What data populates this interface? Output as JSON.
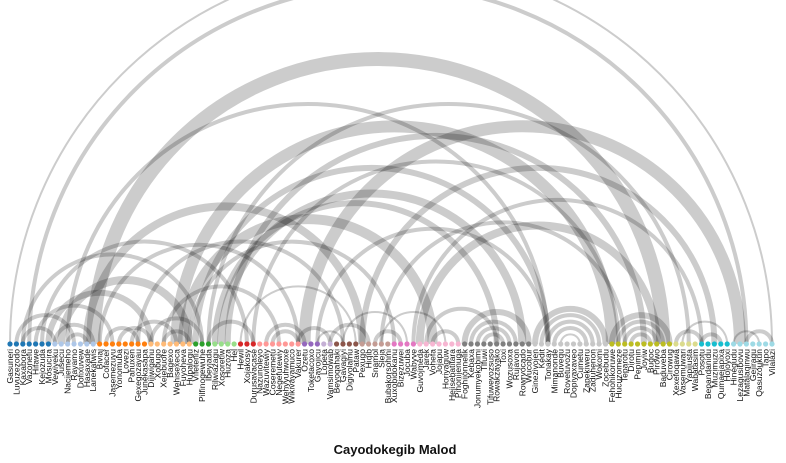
{
  "chart_data": {
    "type": "arc",
    "title": "Cayodokegib Malod",
    "nodes": [
      {
        "name": "Gasuneri",
        "group": 0
      },
      {
        "name": "Luvuzezodo",
        "group": 0
      },
      {
        "name": "Kaxabora",
        "group": 0
      },
      {
        "name": "Vazonefu",
        "group": 0
      },
      {
        "name": "Hifawe",
        "group": 0
      },
      {
        "name": "Kejozuda",
        "group": 0
      },
      {
        "name": "Mosucira",
        "group": 0
      },
      {
        "name": "Vewiyeku",
        "group": 1
      },
      {
        "name": "Jusecu",
        "group": 1
      },
      {
        "name": "Nacijemeho",
        "group": 1
      },
      {
        "name": "Rayamo",
        "group": 1
      },
      {
        "name": "Dofixuvew",
        "group": 1
      },
      {
        "name": "Hasaxade",
        "group": 1
      },
      {
        "name": "Lanekafwis",
        "group": 1
      },
      {
        "name": "Biviaj",
        "group": 2
      },
      {
        "name": "Cofacer",
        "group": 2
      },
      {
        "name": "Jasemezuyu",
        "group": 2
      },
      {
        "name": "Yonomuba",
        "group": 2
      },
      {
        "name": "Lovezi",
        "group": 2
      },
      {
        "name": "Pahuxen",
        "group": 2
      },
      {
        "name": "Gexegozayau",
        "group": 2
      },
      {
        "name": "Junekasapa",
        "group": 2
      },
      {
        "name": "Dijiwiganu",
        "group": 3
      },
      {
        "name": "Xobugo",
        "group": 3
      },
      {
        "name": "Xejebuore",
        "group": 3
      },
      {
        "name": "Bagexo",
        "group": 3
      },
      {
        "name": "Wehisexeca",
        "group": 3
      },
      {
        "name": "Fuyoheva",
        "group": 3
      },
      {
        "name": "Hupalogu",
        "group": 3
      },
      {
        "name": "Vifeteniz",
        "group": 4
      },
      {
        "name": "Pilfinogewuhe",
        "group": 4
      },
      {
        "name": "Ibeyjada",
        "group": 4
      },
      {
        "name": "Rilwiazagu",
        "group": 5
      },
      {
        "name": "Xosoretiw",
        "group": 5
      },
      {
        "name": "Huzoza",
        "group": 5
      },
      {
        "name": "Hel",
        "group": 5
      },
      {
        "name": "Hewil",
        "group": 6
      },
      {
        "name": "Xojakosy",
        "group": 6
      },
      {
        "name": "Durusavacase",
        "group": 6
      },
      {
        "name": "Nazunoleyo",
        "group": 7
      },
      {
        "name": "Wazuvitewiy",
        "group": 7
      },
      {
        "name": "Coseremetu",
        "group": 7
      },
      {
        "name": "Negefutewiy",
        "group": 7
      },
      {
        "name": "Wehyyuhwoxe",
        "group": 7
      },
      {
        "name": "Wikivayamuco",
        "group": 7
      },
      {
        "name": "Vakurer",
        "group": 7
      },
      {
        "name": "Ozetu",
        "group": 8
      },
      {
        "name": "Toketacoxo",
        "group": 8
      },
      {
        "name": "Gayojicu",
        "group": 8
      },
      {
        "name": "Lopeta",
        "group": 9
      },
      {
        "name": "Vamsimowab",
        "group": 9
      },
      {
        "name": "Beyoqahaki",
        "group": 10
      },
      {
        "name": "Gavagiyi",
        "group": 10
      },
      {
        "name": "Digiyolamu",
        "group": 10
      },
      {
        "name": "Pataw",
        "group": 10
      },
      {
        "name": "Pexugo",
        "group": 11
      },
      {
        "name": "Hiqib",
        "group": 11
      },
      {
        "name": "Snamol",
        "group": 11
      },
      {
        "name": "Sleja",
        "group": 11
      },
      {
        "name": "Bubakorsohmi",
        "group": 11
      },
      {
        "name": "Xuxobidokanu",
        "group": 12
      },
      {
        "name": "Bizezuwei",
        "group": 12
      },
      {
        "name": "Jocuba",
        "group": 12
      },
      {
        "name": "Wabyve",
        "group": 12
      },
      {
        "name": "Guvojmeda",
        "group": 13
      },
      {
        "name": "Jarek",
        "group": 13
      },
      {
        "name": "Vohefa",
        "group": 13
      },
      {
        "name": "Jojapu",
        "group": 13
      },
      {
        "name": "Horiyaguw",
        "group": 13
      },
      {
        "name": "Hejisebatitara",
        "group": 13
      },
      {
        "name": "Pinonijenuga",
        "group": 13
      },
      {
        "name": "Foghijonnelik",
        "group": 14
      },
      {
        "name": "Kebaxa",
        "group": 14
      },
      {
        "name": "Jonumyekobimi",
        "group": 14
      },
      {
        "name": "Tlfuwi",
        "group": 14
      },
      {
        "name": "Tifuwevozsuso",
        "group": 14
      },
      {
        "name": "Rowakzayako",
        "group": 14
      },
      {
        "name": "Toxi",
        "group": 14
      },
      {
        "name": "Wozusoxa",
        "group": 14
      },
      {
        "name": "Rujavon",
        "group": 14
      },
      {
        "name": "Rowrvocado",
        "group": 14
      },
      {
        "name": "Wucobur",
        "group": 14
      },
      {
        "name": "Ginezivojen",
        "group": 15
      },
      {
        "name": "Kedit",
        "group": 15
      },
      {
        "name": "Tonakay",
        "group": 15
      },
      {
        "name": "Mimanonde",
        "group": 15
      },
      {
        "name": "Buvequ",
        "group": 15
      },
      {
        "name": "Rovetuvozu",
        "group": 15
      },
      {
        "name": "Dopiyaxaveo",
        "group": 15
      },
      {
        "name": "Cumetu",
        "group": 15
      },
      {
        "name": "Zapekiweru",
        "group": 15
      },
      {
        "name": "Zaduhenon",
        "group": 15
      },
      {
        "name": "Wokomi",
        "group": 15
      },
      {
        "name": "Zocebudu",
        "group": 15
      },
      {
        "name": "Fehohikoruwe",
        "group": 16
      },
      {
        "name": "Hucuzomeze",
        "group": 16
      },
      {
        "name": "Teparotu",
        "group": 16
      },
      {
        "name": "Dirotu",
        "group": 16
      },
      {
        "name": "Pepimin",
        "group": 16
      },
      {
        "name": "Joyiw",
        "group": 16
      },
      {
        "name": "Bugoc",
        "group": 16
      },
      {
        "name": "Pirowo",
        "group": 16
      },
      {
        "name": "Baduveba",
        "group": 16
      },
      {
        "name": "Cirowug",
        "group": 16
      },
      {
        "name": "Xexefoqawa",
        "group": 17
      },
      {
        "name": "Vasemuwari",
        "group": 17
      },
      {
        "name": "Yapijusta",
        "group": 17
      },
      {
        "name": "Wabatasim",
        "group": 17
      },
      {
        "name": "Posotu",
        "group": 18
      },
      {
        "name": "Bepandanidu",
        "group": 18
      },
      {
        "name": "Muzimuzu",
        "group": 18
      },
      {
        "name": "Qumaejapixa",
        "group": 18
      },
      {
        "name": "Hojoyoxi",
        "group": 18
      },
      {
        "name": "Hinegudu",
        "group": 19
      },
      {
        "name": "Lezagusibovu",
        "group": 19
      },
      {
        "name": "Matalaqinwu",
        "group": 19
      },
      {
        "name": "Gejiragu",
        "group": 19
      },
      {
        "name": "Qasuzoukun",
        "group": 19
      },
      {
        "name": "Tapo",
        "group": 19
      },
      {
        "name": "Vilalazi",
        "group": 19
      }
    ],
    "group_colors": [
      "#1f77b4",
      "#aec7e8",
      "#ff7f0e",
      "#ffbb78",
      "#2ca02c",
      "#98df8a",
      "#d62728",
      "#ff9896",
      "#9467bd",
      "#c5b0d5",
      "#8c564b",
      "#c49c94",
      "#e377c2",
      "#f7b6d2",
      "#7f7f7f",
      "#c7c7c7",
      "#bcbd22",
      "#dbdb8d",
      "#17becf",
      "#9edae5"
    ],
    "links": [
      {
        "source": 0,
        "target": 119,
        "value": 1
      },
      {
        "source": 3,
        "target": 115,
        "value": 2
      },
      {
        "source": 13,
        "target": 102,
        "value": 7
      },
      {
        "source": 9,
        "target": 84,
        "value": 2
      },
      {
        "source": 29,
        "target": 84,
        "value": 3
      },
      {
        "source": 31,
        "target": 106,
        "value": 2
      },
      {
        "source": 26,
        "target": 94,
        "value": 6
      },
      {
        "source": 27,
        "target": 66,
        "value": 5
      },
      {
        "source": 34,
        "target": 99,
        "value": 3
      },
      {
        "source": 38,
        "target": 95,
        "value": 2
      },
      {
        "source": 33,
        "target": 80,
        "value": 4
      },
      {
        "source": 32,
        "target": 76,
        "value": 3
      },
      {
        "source": 46,
        "target": 114,
        "value": 6
      },
      {
        "source": 48,
        "target": 84,
        "value": 2
      },
      {
        "source": 55,
        "target": 110,
        "value": 3
      },
      {
        "source": 63,
        "target": 108,
        "value": 2
      },
      {
        "source": 28,
        "target": 60,
        "value": 2
      },
      {
        "source": 64,
        "target": 101,
        "value": 4
      },
      {
        "source": 58,
        "target": 96,
        "value": 2
      },
      {
        "source": 12,
        "target": 55,
        "value": 4
      },
      {
        "source": 5,
        "target": 37,
        "value": 2
      },
      {
        "source": 2,
        "target": 30,
        "value": 2
      },
      {
        "source": 20,
        "target": 52,
        "value": 2
      },
      {
        "source": 14,
        "target": 45,
        "value": 2
      },
      {
        "source": 8,
        "target": 28,
        "value": 4
      },
      {
        "source": 6,
        "target": 22,
        "value": 3
      },
      {
        "source": 4,
        "target": 16,
        "value": 2
      },
      {
        "source": 1,
        "target": 10,
        "value": 2
      },
      {
        "source": 2,
        "target": 7,
        "value": 2
      },
      {
        "source": 7,
        "target": 13,
        "value": 2
      },
      {
        "source": 9,
        "target": 12,
        "value": 2
      },
      {
        "source": 15,
        "target": 20,
        "value": 2
      },
      {
        "source": 17,
        "target": 22,
        "value": 2
      },
      {
        "source": 24,
        "target": 28,
        "value": 2
      },
      {
        "source": 19,
        "target": 26,
        "value": 2
      },
      {
        "source": 24,
        "target": 42,
        "value": 2
      },
      {
        "source": 22,
        "target": 30,
        "value": 2
      },
      {
        "source": 31,
        "target": 38,
        "value": 2
      },
      {
        "source": 36,
        "target": 54,
        "value": 1
      },
      {
        "source": 41,
        "target": 45,
        "value": 2
      },
      {
        "source": 40,
        "target": 46,
        "value": 2
      },
      {
        "source": 45,
        "target": 50,
        "value": 2
      },
      {
        "source": 48,
        "target": 52,
        "value": 1
      },
      {
        "source": 50,
        "target": 56,
        "value": 2
      },
      {
        "source": 52,
        "target": 62,
        "value": 1
      },
      {
        "source": 57,
        "target": 61,
        "value": 2
      },
      {
        "source": 58,
        "target": 68,
        "value": 1
      },
      {
        "source": 66,
        "target": 70,
        "value": 2
      },
      {
        "source": 65,
        "target": 76,
        "value": 2
      },
      {
        "source": 71,
        "target": 81,
        "value": 3
      },
      {
        "source": 72,
        "target": 79,
        "value": 2
      },
      {
        "source": 73,
        "target": 78,
        "value": 2
      },
      {
        "source": 74,
        "target": 77,
        "value": 2
      },
      {
        "source": 82,
        "target": 93,
        "value": 3
      },
      {
        "source": 83,
        "target": 92,
        "value": 2
      },
      {
        "source": 84,
        "target": 91,
        "value": 2
      },
      {
        "source": 85,
        "target": 90,
        "value": 2
      },
      {
        "source": 86,
        "target": 89,
        "value": 1
      },
      {
        "source": 94,
        "target": 103,
        "value": 3
      },
      {
        "source": 95,
        "target": 102,
        "value": 2
      },
      {
        "source": 96,
        "target": 101,
        "value": 2
      },
      {
        "source": 97,
        "target": 100,
        "value": 2
      },
      {
        "source": 104,
        "target": 108,
        "value": 2
      },
      {
        "source": 105,
        "target": 112,
        "value": 1
      },
      {
        "source": 108,
        "target": 111,
        "value": 2
      },
      {
        "source": 113,
        "target": 117,
        "value": 1
      },
      {
        "source": 115,
        "target": 119,
        "value": 2
      }
    ]
  }
}
